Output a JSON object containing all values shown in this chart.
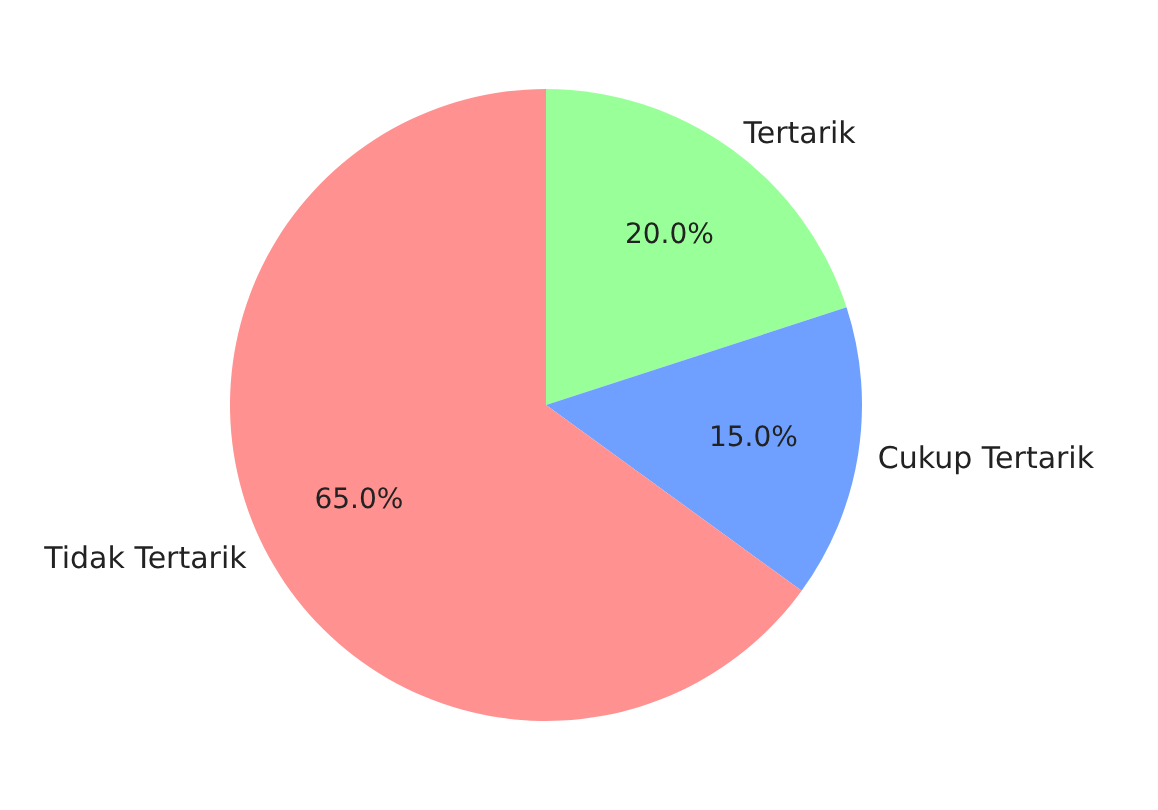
{
  "chart_data": {
    "type": "pie",
    "categories": [
      "Tertarik",
      "Cukup Tertarik",
      "Tidak Tertarik"
    ],
    "values": [
      20,
      15,
      65
    ],
    "value_labels": [
      "20.0%",
      "15.0%",
      "65.0%"
    ],
    "colors": [
      "#99ff99",
      "#70a0ff",
      "#ff9191"
    ]
  }
}
